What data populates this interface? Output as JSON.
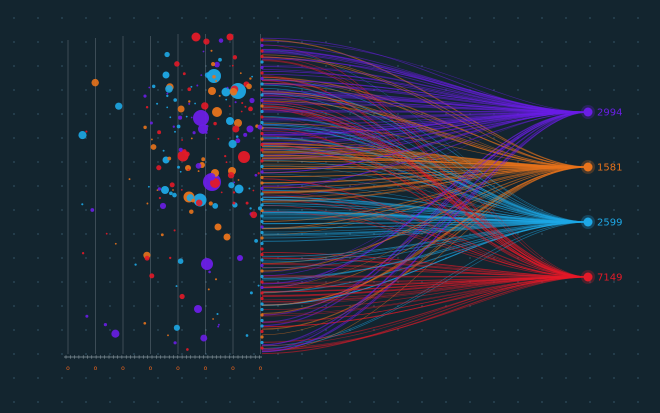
{
  "chart_data": {
    "type": "scatter",
    "title": "",
    "xlabel": "",
    "ylabel": "",
    "x_ticks_count": 8,
    "targets": [
      {
        "label": "2994",
        "color": "#6a1ee6"
      },
      {
        "label": "1581",
        "color": "#e8731c"
      },
      {
        "label": "2599",
        "color": "#1ea8e6"
      },
      {
        "label": "7149",
        "color": "#e31a28"
      }
    ],
    "colors": {
      "background": "#13252f",
      "grid_dot": "#3c5f73",
      "axis": "#d8e2ea",
      "purple": "#6a1ee6",
      "orange": "#e8731c",
      "blue": "#1ea8e6",
      "red": "#e31a28"
    },
    "grid": true,
    "legend": "none"
  }
}
